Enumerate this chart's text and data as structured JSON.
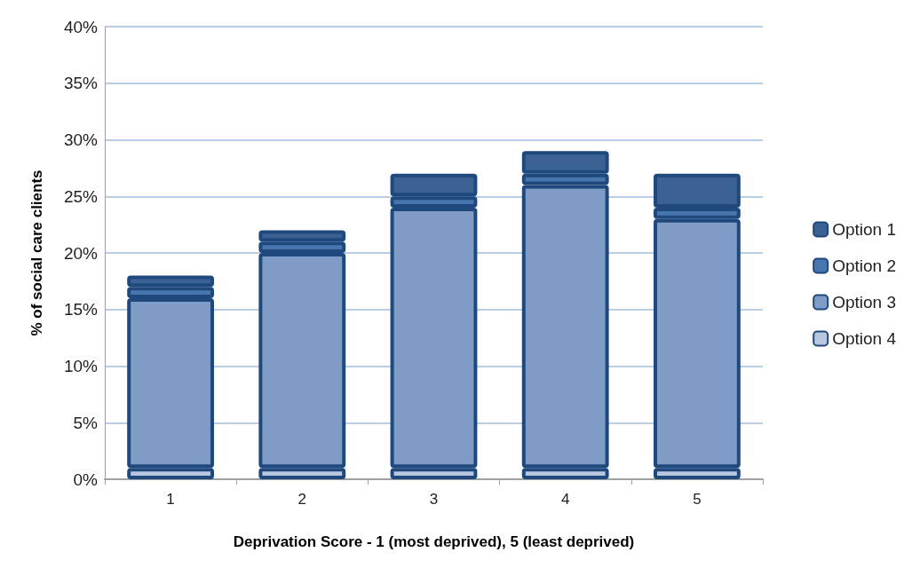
{
  "chart_data": {
    "type": "bar",
    "stacked": true,
    "xlabel": "Deprivation Score - 1 (most deprived), 5 (least deprived)",
    "ylabel": "% of social care clients",
    "categories": [
      "1",
      "2",
      "3",
      "4",
      "5"
    ],
    "series": [
      {
        "name": "Option 4",
        "color": "#b9c6df",
        "values": [
          1,
          1,
          1,
          1,
          1
        ]
      },
      {
        "name": "Option 3",
        "color": "#7f9cc7",
        "values": [
          15,
          19,
          23,
          25,
          22
        ]
      },
      {
        "name": "Option 2",
        "color": "#4776ae",
        "values": [
          1,
          1,
          1,
          1,
          1
        ]
      },
      {
        "name": "Option 1",
        "color": "#3b6292",
        "values": [
          1,
          1,
          2,
          2,
          3
        ]
      }
    ],
    "ylim": [
      0,
      40
    ],
    "yticks": [
      {
        "value": 0,
        "label": "0%"
      },
      {
        "value": 5,
        "label": "5%"
      },
      {
        "value": 10,
        "label": "10%"
      },
      {
        "value": 15,
        "label": "15%"
      },
      {
        "value": 20,
        "label": "20%"
      },
      {
        "value": 25,
        "label": "25%"
      },
      {
        "value": 30,
        "label": "30%"
      },
      {
        "value": 35,
        "label": "35%"
      },
      {
        "value": 40,
        "label": "40%"
      }
    ],
    "grid": "y",
    "legend": "right"
  }
}
